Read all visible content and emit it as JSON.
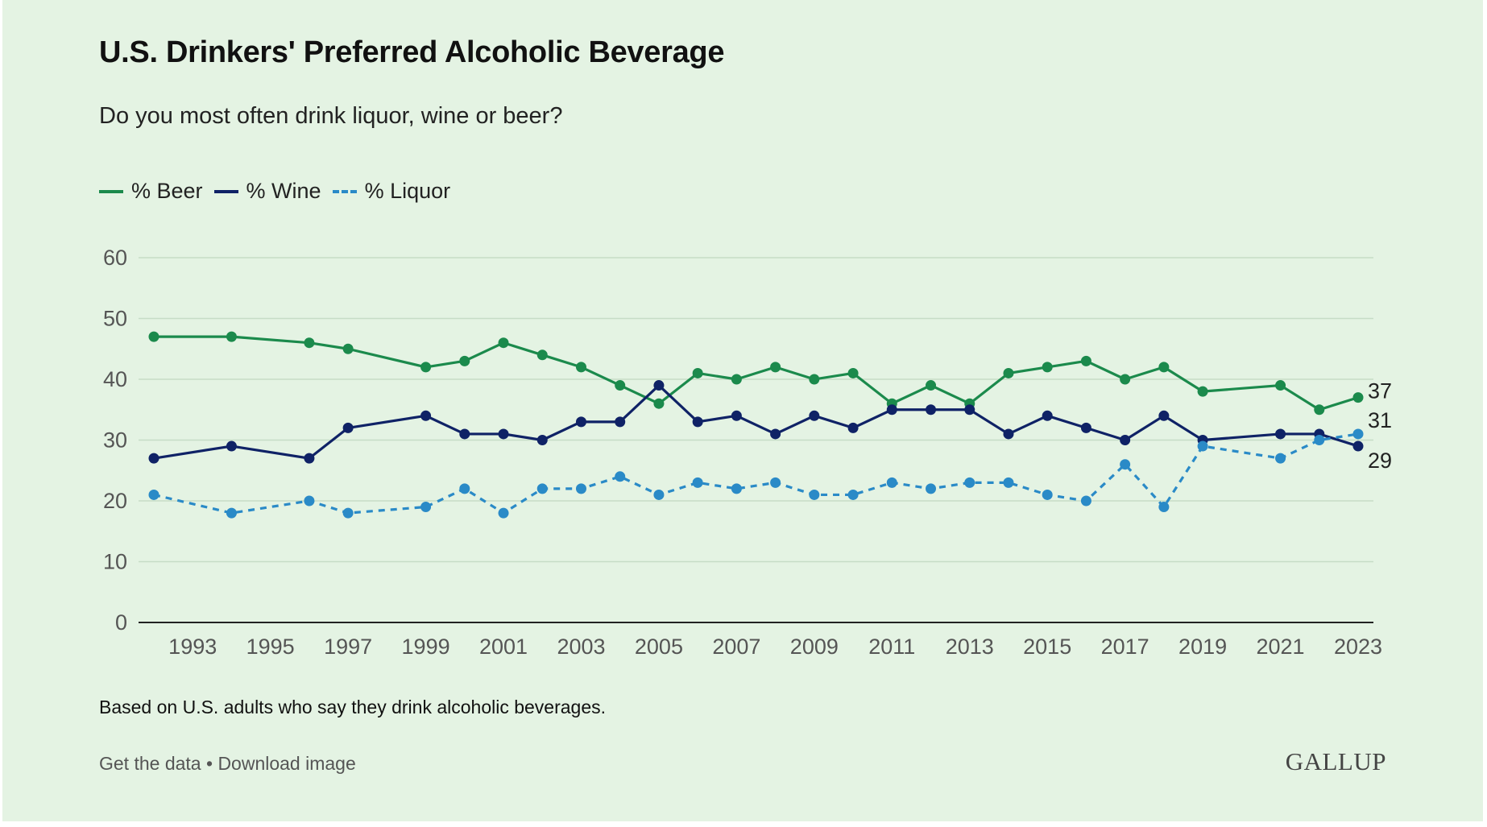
{
  "header": {
    "title": "U.S. Drinkers' Preferred Alcoholic Beverage",
    "subtitle": "Do you most often drink liquor, wine or beer?"
  },
  "legend": [
    {
      "label": "% Beer",
      "color": "#1b8a4c",
      "dashed": false
    },
    {
      "label": "% Wine",
      "color": "#0f2266",
      "dashed": false
    },
    {
      "label": "% Liquor",
      "color": "#2a8ac7",
      "dashed": true
    }
  ],
  "chart_data": {
    "type": "line",
    "title": "U.S. Drinkers' Preferred Alcoholic Beverage",
    "subtitle": "Do you most often drink liquor, wine or beer?",
    "xlabel": "",
    "ylabel": "",
    "ylim": [
      0,
      60
    ],
    "yticks": [
      0,
      10,
      20,
      30,
      40,
      50,
      60
    ],
    "xlim": [
      1992,
      2023
    ],
    "xticks": [
      1993,
      1995,
      1997,
      1999,
      2001,
      2003,
      2005,
      2007,
      2009,
      2011,
      2013,
      2015,
      2017,
      2019,
      2021,
      2023
    ],
    "grid": true,
    "legend_position": "top-left",
    "end_labels": [
      "37",
      "31",
      "29"
    ],
    "x": [
      1992,
      1994,
      1996,
      1997,
      1999,
      2000,
      2001,
      2002,
      2003,
      2004,
      2005,
      2006,
      2007,
      2008,
      2009,
      2010,
      2011,
      2012,
      2013,
      2014,
      2015,
      2016,
      2017,
      2018,
      2019,
      2021,
      2022,
      2023
    ],
    "series": [
      {
        "name": "% Beer",
        "color": "#1b8a4c",
        "dashed": false,
        "values": [
          47,
          47,
          46,
          45,
          42,
          43,
          46,
          44,
          42,
          39,
          36,
          41,
          40,
          42,
          40,
          41,
          36,
          39,
          36,
          41,
          42,
          43,
          40,
          42,
          38,
          39,
          35,
          37
        ]
      },
      {
        "name": "% Wine",
        "color": "#0f2266",
        "dashed": false,
        "values": [
          27,
          29,
          27,
          32,
          34,
          31,
          31,
          30,
          33,
          33,
          39,
          33,
          34,
          31,
          34,
          32,
          35,
          35,
          35,
          31,
          34,
          32,
          30,
          34,
          30,
          31,
          31,
          29
        ]
      },
      {
        "name": "% Liquor",
        "color": "#2a8ac7",
        "dashed": true,
        "values": [
          21,
          18,
          20,
          18,
          19,
          22,
          18,
          22,
          22,
          24,
          21,
          23,
          22,
          23,
          21,
          21,
          23,
          22,
          23,
          23,
          21,
          20,
          26,
          19,
          29,
          27,
          30,
          31
        ]
      }
    ]
  },
  "footnote": "Based on U.S. adults who say they drink alcoholic beverages.",
  "links": {
    "get_data": "Get the data",
    "separator": " • ",
    "download": "Download image"
  },
  "logo": "GALLUP"
}
